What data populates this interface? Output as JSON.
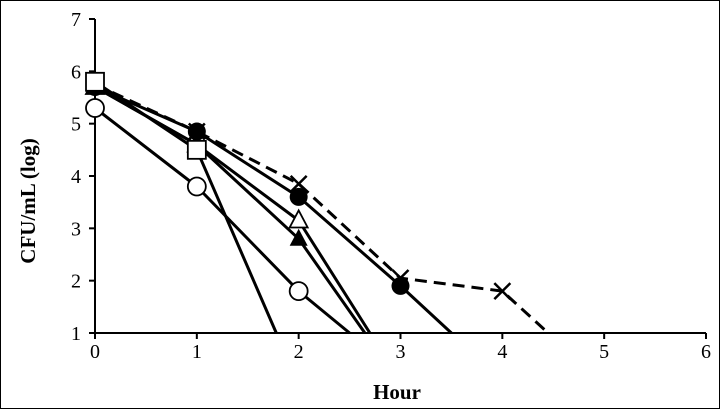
{
  "chart_data": {
    "type": "line",
    "title": "",
    "xlabel": "Hour",
    "ylabel": "CFU/mL (log)",
    "xlim": [
      0,
      6
    ],
    "ylim": [
      1,
      7
    ],
    "x_ticks": [
      "0",
      "1",
      "2",
      "3",
      "4",
      "5",
      "6"
    ],
    "y_ticks": [
      "1",
      "2",
      "3",
      "4",
      "5",
      "6",
      "7"
    ],
    "grid": false,
    "legend": "none",
    "series": [
      {
        "marker": "x",
        "line": "dashed",
        "color": "#000000",
        "points": [
          [
            0,
            5.75
          ],
          [
            1,
            4.85
          ],
          [
            2,
            3.85
          ],
          [
            3,
            2.05
          ],
          [
            4,
            1.8
          ],
          [
            4.45,
            1.0
          ]
        ]
      },
      {
        "marker": "filled-circle",
        "line": "solid",
        "color": "#000000",
        "points": [
          [
            0,
            5.7
          ],
          [
            1,
            4.85
          ],
          [
            2,
            3.6
          ],
          [
            3,
            1.9
          ],
          [
            3.5,
            1.0
          ]
        ]
      },
      {
        "marker": "open-triangle",
        "line": "solid",
        "color": "#000000",
        "points": [
          [
            0,
            5.7
          ],
          [
            1,
            4.6
          ],
          [
            2,
            3.15
          ],
          [
            2.7,
            1.0
          ]
        ]
      },
      {
        "marker": "filled-triangle",
        "line": "solid",
        "color": "#000000",
        "points": [
          [
            0,
            5.7
          ],
          [
            1,
            4.6
          ],
          [
            2,
            2.8
          ],
          [
            2.65,
            1.0
          ]
        ]
      },
      {
        "marker": "open-square",
        "line": "solid",
        "color": "#000000",
        "points": [
          [
            0,
            5.8
          ],
          [
            1,
            4.5
          ],
          [
            1.78,
            1.0
          ]
        ]
      },
      {
        "marker": "open-circle",
        "line": "solid",
        "color": "#000000",
        "points": [
          [
            0,
            5.3
          ],
          [
            1,
            3.8
          ],
          [
            2,
            1.8
          ],
          [
            2.5,
            1.0
          ]
        ]
      }
    ]
  }
}
